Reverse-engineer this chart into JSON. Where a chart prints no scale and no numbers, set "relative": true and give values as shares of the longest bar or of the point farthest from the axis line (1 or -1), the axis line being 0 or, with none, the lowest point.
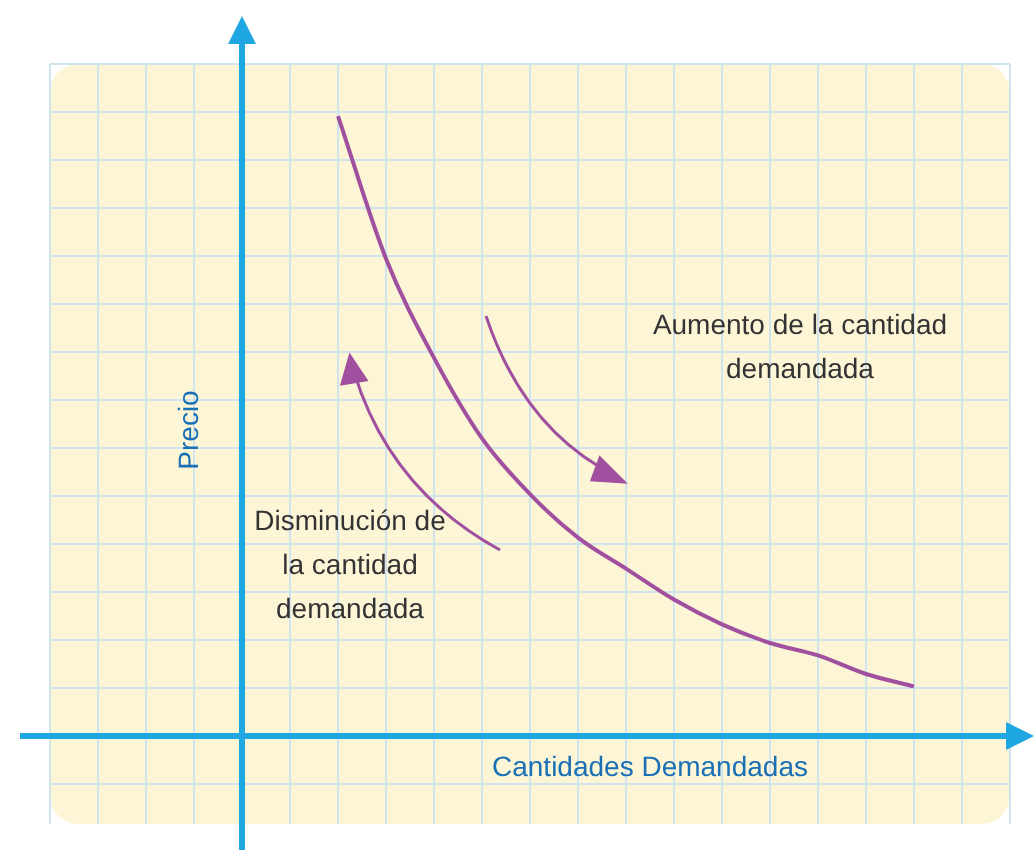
{
  "chart_data": {
    "type": "line",
    "relative": true,
    "xlabel": "Cantidades Demandadas",
    "ylabel": "Precio",
    "categories": [
      null,
      null,
      null,
      null,
      null,
      null,
      null,
      null,
      null,
      null,
      null,
      null,
      null,
      null,
      null,
      null,
      null,
      null,
      null,
      null,
      null
    ],
    "series": [
      {
        "color": "#a0509f",
        "values": [
          null,
          null,
          null,
          null,
          null,
          null,
          1,
          0.77,
          0.61,
          0.48,
          0.39,
          0.32,
          0.27,
          0.22,
          0.18,
          0.15,
          0.13,
          0.1,
          0.08,
          null,
          null
        ]
      }
    ],
    "grid": true,
    "annotations": [
      "Aumento de la cantidad demandada",
      "Disminución de la cantidad demandada"
    ]
  }
}
